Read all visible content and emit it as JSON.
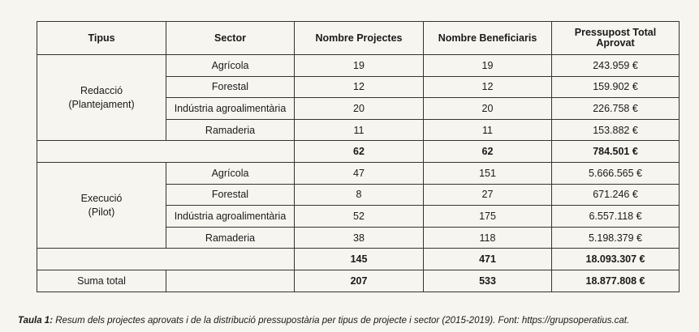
{
  "headers": {
    "tipus": "Tipus",
    "sector": "Sector",
    "projectes": "Nombre Projectes",
    "beneficiaris": "Nombre Beneficiaris",
    "pressupost_line1": "Pressupost Total",
    "pressupost_line2": "Aprovat"
  },
  "groups": [
    {
      "tipus_line1": "Redacció",
      "tipus_line2": "(Plantejament)",
      "rows": [
        {
          "sector": "Agrícola",
          "projectes": "19",
          "beneficiaris": "19",
          "pressupost": "243.959 €"
        },
        {
          "sector": "Forestal",
          "projectes": "12",
          "beneficiaris": "12",
          "pressupost": "159.902 €"
        },
        {
          "sector": "Indústria agroalimentària",
          "projectes": "20",
          "beneficiaris": "20",
          "pressupost": "226.758 €"
        },
        {
          "sector": "Ramaderia",
          "projectes": "11",
          "beneficiaris": "11",
          "pressupost": "153.882 €"
        }
      ],
      "subtotal": {
        "projectes": "62",
        "beneficiaris": "62",
        "pressupost": "784.501 €"
      }
    },
    {
      "tipus_line1": "Execució",
      "tipus_line2": "(Pilot)",
      "rows": [
        {
          "sector": "Agrícola",
          "projectes": "47",
          "beneficiaris": "151",
          "pressupost": "5.666.565 €"
        },
        {
          "sector": "Forestal",
          "projectes": "8",
          "beneficiaris": "27",
          "pressupost": "671.246 €"
        },
        {
          "sector": "Indústria agroalimentària",
          "projectes": "52",
          "beneficiaris": "175",
          "pressupost": "6.557.118 €"
        },
        {
          "sector": "Ramaderia",
          "projectes": "38",
          "beneficiaris": "118",
          "pressupost": "5.198.379 €"
        }
      ],
      "subtotal": {
        "projectes": "145",
        "beneficiaris": "471",
        "pressupost": "18.093.307 €"
      }
    }
  ],
  "total": {
    "label": "Suma total",
    "projectes": "207",
    "beneficiaris": "533",
    "pressupost": "18.877.808 €"
  },
  "caption": {
    "label": "Taula 1:",
    "text": " Resum dels projectes aprovats i de la distribució pressupostària per tipus de projecte i sector (2015-2019). Font: https://grupsoperatius.cat."
  }
}
